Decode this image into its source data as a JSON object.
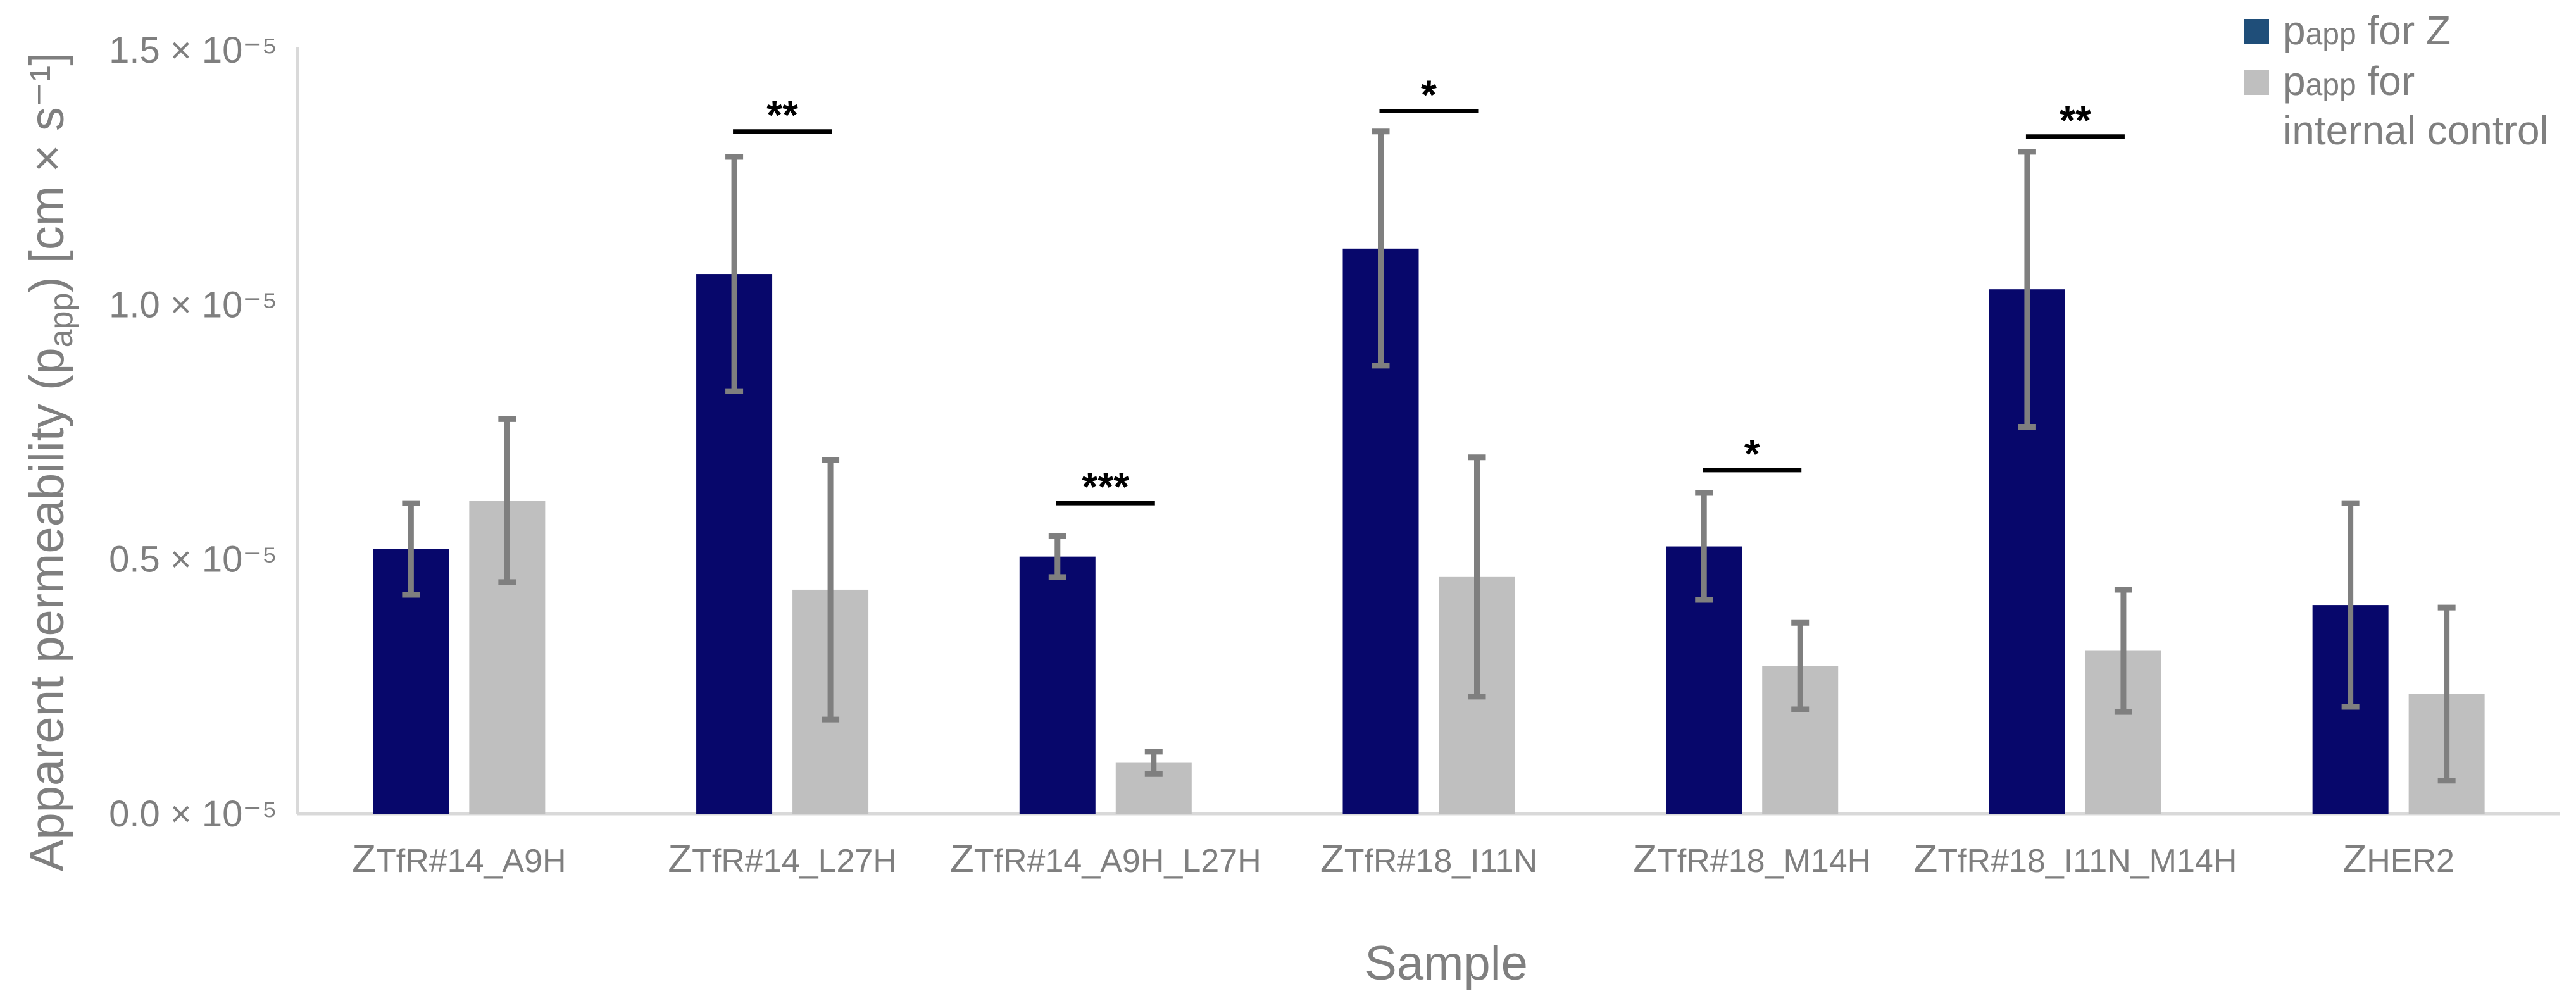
{
  "chart_data": {
    "type": "bar",
    "title": "",
    "xlabel": "Sample",
    "ylabel": "Apparent permeability (papp) [cm × s⁻¹]",
    "ylim": [
      0,
      1.5
    ],
    "y_exponent": "× 10⁻⁵",
    "yticks": [
      {
        "value": 0.0,
        "label": "0.0 × 10⁻⁵"
      },
      {
        "value": 0.5,
        "label": "0.5 × 10⁻⁵"
      },
      {
        "value": 1.0,
        "label": "1.0 × 10⁻⁵"
      },
      {
        "value": 1.5,
        "label": "1.5 × 10⁻⁵"
      }
    ],
    "grid": false,
    "legend_position": "top-right",
    "categories": [
      {
        "main": "Z",
        "sub": "TfR#14_A9H"
      },
      {
        "main": "Z",
        "sub": "TfR#14_L27H"
      },
      {
        "main": "Z",
        "sub": "TfR#14_A9H_L27H"
      },
      {
        "main": "Z",
        "sub": "TfR#18_I11N"
      },
      {
        "main": "Z",
        "sub": "TfR#18_M14H"
      },
      {
        "main": "Z",
        "sub": "TfR#18_I11N_M14H"
      },
      {
        "main": "Z",
        "sub": "HER2"
      }
    ],
    "series": [
      {
        "name": "papp for Z",
        "legend_lines": [
          [
            {
              "t": "p",
              "sub": false
            },
            {
              "t": "app",
              "sub": true
            },
            {
              "t": " for Z",
              "sub": false
            }
          ]
        ],
        "color": "#07076b",
        "legend_color": "#1f4e79",
        "values": [
          0.52,
          1.06,
          0.505,
          1.11,
          0.525,
          1.03,
          0.41
        ],
        "errors": [
          0.09,
          0.23,
          0.04,
          0.23,
          0.105,
          0.27,
          0.2
        ]
      },
      {
        "name": "papp for internal control",
        "legend_lines": [
          [
            {
              "t": "p",
              "sub": false
            },
            {
              "t": "app",
              "sub": true
            },
            {
              "t": " for",
              "sub": false
            }
          ],
          [
            {
              "t": "internal control",
              "sub": false
            }
          ]
        ],
        "color": "#bfbfbf",
        "legend_color": "#bfbfbf",
        "values": [
          0.615,
          0.44,
          0.1,
          0.465,
          0.29,
          0.32,
          0.235
        ],
        "errors": [
          0.16,
          0.255,
          0.022,
          0.235,
          0.085,
          0.12,
          0.17
        ]
      }
    ],
    "error_bar_color": "#7f7f7f",
    "significance": [
      {
        "category_index": 1,
        "label": "**",
        "y": 1.34
      },
      {
        "category_index": 2,
        "label": "***",
        "y": 0.61
      },
      {
        "category_index": 3,
        "label": "*",
        "y": 1.38
      },
      {
        "category_index": 4,
        "label": "*",
        "y": 0.675
      },
      {
        "category_index": 5,
        "label": "**",
        "y": 1.33
      }
    ]
  }
}
